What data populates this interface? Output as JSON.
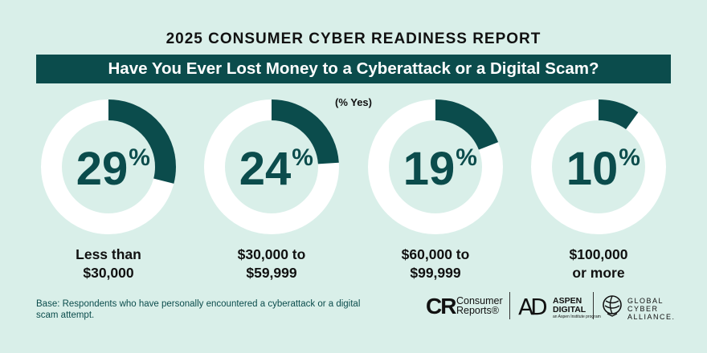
{
  "header": {
    "report_title": "2025 CONSUMER CYBER READINESS REPORT",
    "question": "Have You Ever Lost Money to a Cyberattack or a Digital Scam?",
    "unit_note": "(% Yes)"
  },
  "colors": {
    "background": "#d9efe9",
    "accent": "#0b4c4c",
    "ring_track": "#ffffff",
    "text": "#111111"
  },
  "chart_data": {
    "type": "donut",
    "title": "Have You Ever Lost Money to a Cyberattack or a Digital Scam?",
    "unit": "% Yes",
    "categories": [
      [
        "Less than",
        "$30,000"
      ],
      [
        "$30,000 to",
        "$59,999"
      ],
      [
        "$60,000 to",
        "$99,999"
      ],
      [
        "$100,000",
        "or more"
      ]
    ],
    "values": [
      29,
      24,
      19,
      10
    ],
    "value_labels": [
      "29%",
      "24%",
      "19%",
      "10%"
    ],
    "max": 100
  },
  "footer": {
    "base_note": "Base: Respondents who have personally encountered a cyberattack or a digital scam attempt.",
    "logos": {
      "consumer_reports": {
        "mark": "CR",
        "line1": "Consumer",
        "line2": "Reports®"
      },
      "aspen_digital": {
        "mark": "AD",
        "line1": "ASPEN",
        "line2": "DIGITAL",
        "sub": "an Aspen Institute program"
      },
      "global_cyber_alliance": {
        "line1": "GLOBAL",
        "line2": "CYBER",
        "line3": "ALLIANCE."
      }
    }
  }
}
